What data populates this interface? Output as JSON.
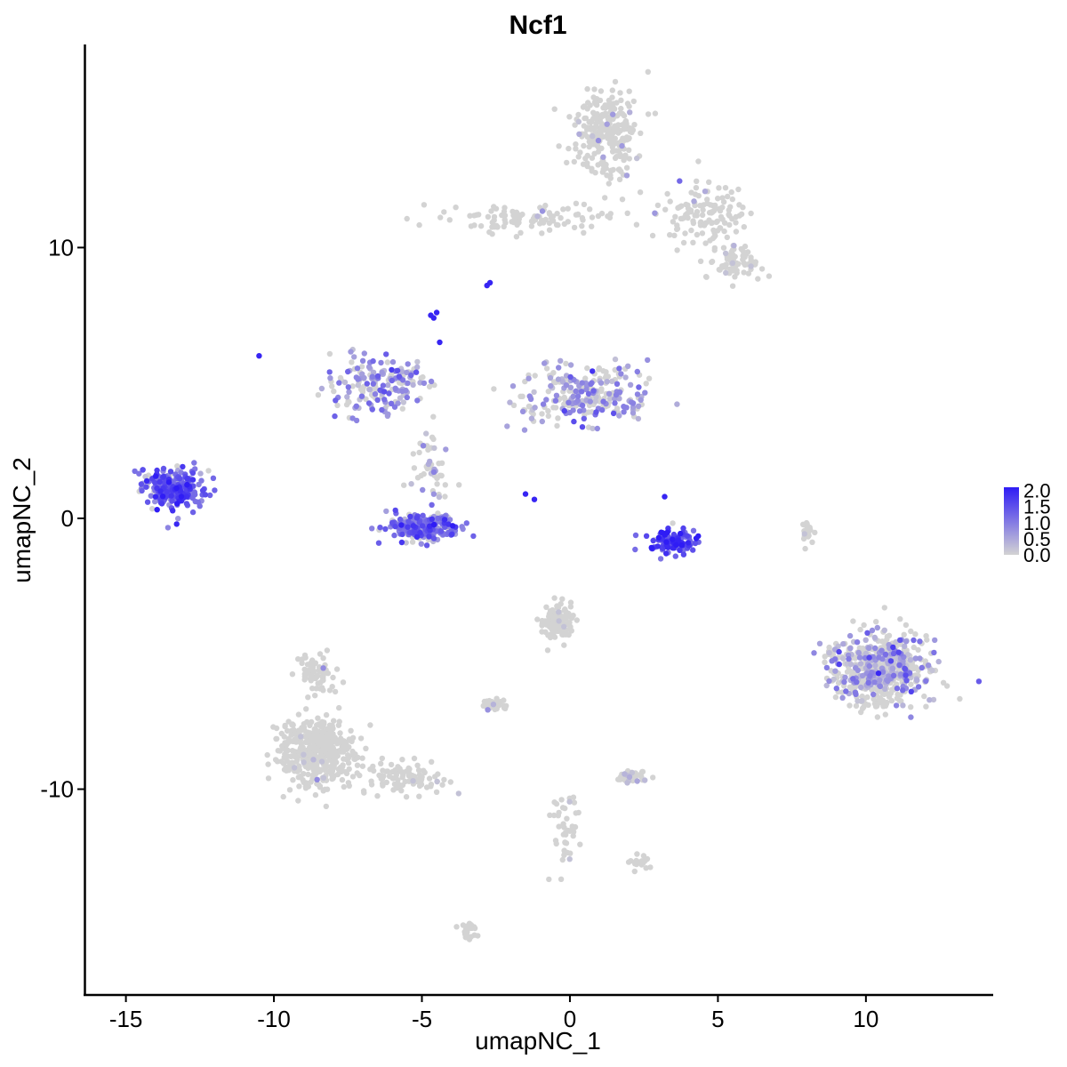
{
  "chart_data": {
    "type": "scatter",
    "title": "Ncf1",
    "xlabel": "umapNC_1",
    "ylabel": "umapNC_2",
    "xlim": [
      -16.4,
      14.3
    ],
    "ylim": [
      -17.6,
      17.5
    ],
    "x_ticks": [
      -15,
      -10,
      -5,
      0,
      5,
      10
    ],
    "x_tick_labels": [
      "-15",
      "-10",
      "-5",
      "0",
      "5",
      "10"
    ],
    "y_ticks": [
      -10,
      0,
      10
    ],
    "y_tick_labels": [
      "-10",
      "0",
      "10"
    ],
    "grid": false,
    "legend_placement": "right",
    "color_scale": {
      "low_color": "#d3d3d3",
      "high_color": "#2f1cf5",
      "min": 0.0,
      "max": 2.1,
      "breaks": [
        2.0,
        1.5,
        1.0,
        0.5,
        0.0
      ],
      "break_labels": [
        "2.0",
        "1.5",
        "1.0",
        "0.5",
        "0.0"
      ]
    },
    "clusters": [
      {
        "name": "top-right-blob",
        "center": [
          1.2,
          14.2
        ],
        "spread": [
          0.9,
          1.3
        ],
        "n": 260,
        "expr_mean": 0.1,
        "expr_frac": 0.05
      },
      {
        "name": "top-right-arm",
        "center": [
          4.6,
          11.2
        ],
        "spread": [
          1.2,
          1.0
        ],
        "n": 130,
        "expr_mean": 0.1,
        "expr_frac": 0.04
      },
      {
        "name": "top-right-tip",
        "center": [
          5.6,
          9.5
        ],
        "spread": [
          0.7,
          0.5
        ],
        "n": 70,
        "expr_mean": 0.1,
        "expr_frac": 0.03
      },
      {
        "name": "top-thread",
        "center": [
          -1.5,
          11.1
        ],
        "spread": [
          2.3,
          0.4
        ],
        "n": 110,
        "expr_mean": 0.15,
        "expr_frac": 0.06
      },
      {
        "name": "center-left-arc",
        "center": [
          -6.3,
          4.9
        ],
        "spread": [
          1.3,
          0.9
        ],
        "n": 180,
        "expr_mean": 0.8,
        "expr_frac": 0.6
      },
      {
        "name": "center-left-stem",
        "center": [
          -4.7,
          2.0
        ],
        "spread": [
          0.6,
          1.0
        ],
        "n": 50,
        "expr_mean": 0.4,
        "expr_frac": 0.3
      },
      {
        "name": "center-right-branch",
        "center": [
          0.5,
          4.6
        ],
        "spread": [
          1.8,
          0.9
        ],
        "n": 260,
        "expr_mean": 0.7,
        "expr_frac": 0.5
      },
      {
        "name": "left-cluster",
        "center": [
          -13.4,
          1.1
        ],
        "spread": [
          0.8,
          0.6
        ],
        "n": 260,
        "expr_mean": 1.3,
        "expr_frac": 0.9
      },
      {
        "name": "bowl-cluster",
        "center": [
          -5.0,
          -0.3
        ],
        "spread": [
          1.1,
          0.4
        ],
        "n": 230,
        "expr_mean": 1.1,
        "expr_frac": 0.85
      },
      {
        "name": "v-cluster",
        "center": [
          3.5,
          -0.8
        ],
        "spread": [
          0.7,
          0.4
        ],
        "n": 120,
        "expr_mean": 1.6,
        "expr_frac": 0.95
      },
      {
        "name": "right-cluster",
        "center": [
          10.5,
          -5.6
        ],
        "spread": [
          1.4,
          1.1
        ],
        "n": 600,
        "expr_mean": 0.6,
        "expr_frac": 0.4
      },
      {
        "name": "bottom-left-blob",
        "center": [
          -8.6,
          -8.6
        ],
        "spread": [
          1.1,
          1.1
        ],
        "n": 420,
        "expr_mean": 0.05,
        "expr_frac": 0.02
      },
      {
        "name": "bottom-left-tail",
        "center": [
          -5.5,
          -9.6
        ],
        "spread": [
          1.3,
          0.5
        ],
        "n": 90,
        "expr_mean": 0.05,
        "expr_frac": 0.02
      },
      {
        "name": "bottom-left-top",
        "center": [
          -8.6,
          -5.8
        ],
        "spread": [
          0.5,
          0.6
        ],
        "n": 70,
        "expr_mean": 0.05,
        "expr_frac": 0.02
      },
      {
        "name": "small-center-cluster",
        "center": [
          -0.4,
          -3.8
        ],
        "spread": [
          0.5,
          0.6
        ],
        "n": 110,
        "expr_mean": 0.1,
        "expr_frac": 0.05
      },
      {
        "name": "small-cluster-a",
        "center": [
          -2.6,
          -6.9
        ],
        "spread": [
          0.3,
          0.2
        ],
        "n": 30,
        "expr_mean": 0.1,
        "expr_frac": 0.05
      },
      {
        "name": "small-cluster-b",
        "center": [
          2.1,
          -9.5
        ],
        "spread": [
          0.4,
          0.2
        ],
        "n": 40,
        "expr_mean": 0.3,
        "expr_frac": 0.2
      },
      {
        "name": "bottom-stem",
        "center": [
          -0.2,
          -11.4
        ],
        "spread": [
          0.4,
          1.1
        ],
        "n": 45,
        "expr_mean": 0.05,
        "expr_frac": 0.02
      },
      {
        "name": "bottom-stem-right",
        "center": [
          2.3,
          -12.7
        ],
        "spread": [
          0.3,
          0.2
        ],
        "n": 20,
        "expr_mean": 0.05,
        "expr_frac": 0.02
      },
      {
        "name": "bottom-tail",
        "center": [
          -3.4,
          -15.2
        ],
        "spread": [
          0.2,
          0.4
        ],
        "n": 30,
        "expr_mean": 0.05,
        "expr_frac": 0.02
      },
      {
        "name": "thin-line",
        "center": [
          8.0,
          -0.5
        ],
        "spread": [
          0.2,
          0.5
        ],
        "n": 20,
        "expr_mean": 0.05,
        "expr_frac": 0.02
      }
    ],
    "high_points": [
      [
        -4.6,
        7.4
      ],
      [
        -4.7,
        7.5
      ],
      [
        -4.5,
        7.6
      ],
      [
        -2.8,
        8.6
      ],
      [
        -2.7,
        8.7
      ],
      [
        -14.0,
        0.8
      ],
      [
        3.5,
        -0.9
      ],
      [
        3.8,
        -1.0
      ],
      [
        4.0,
        -0.9
      ],
      [
        3.2,
        0.8
      ],
      [
        -1.5,
        0.9
      ],
      [
        -1.2,
        0.7
      ],
      [
        -4.4,
        6.5
      ],
      [
        -10.5,
        6.0
      ]
    ]
  }
}
